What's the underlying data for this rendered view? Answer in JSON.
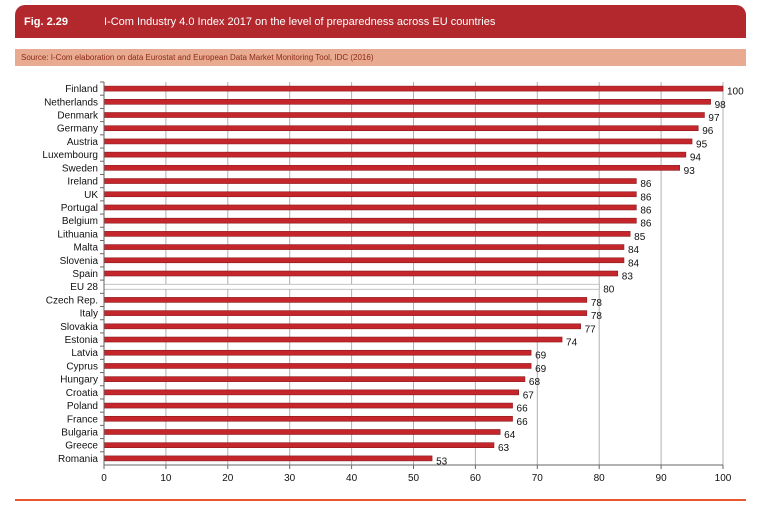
{
  "figure": {
    "number": "Fig. 2.29",
    "title": "I-Com Industry 4.0 Index 2017 on the level of preparedness across EU countries",
    "source": "Source: I-Com elaboration on data Eurostat and European Data Market Monitoring Tool, IDC (2016)"
  },
  "colors": {
    "header": "#b3282d",
    "source_bar": "#e8ab91",
    "bar": "#c4262b",
    "highlight_bar": "#ffffff",
    "grid": "#b0b0b0",
    "rule": "#e9572f"
  },
  "chart_data": {
    "type": "bar",
    "orientation": "horizontal",
    "categories": [
      "Finland",
      "Netherlands",
      "Denmark",
      "Germany",
      "Austria",
      "Luxembourg",
      "Sweden",
      "Ireland",
      "UK",
      "Portugal",
      "Belgium",
      "Lithuania",
      "Malta",
      "Slovenia",
      "Spain",
      "EU 28",
      "Czech Rep.",
      "Italy",
      "Slovakia",
      "Estonia",
      "Latvia",
      "Cyprus",
      "Hungary",
      "Croatia",
      "Poland",
      "France",
      "Bulgaria",
      "Greece",
      "Romania"
    ],
    "values": [
      100,
      98,
      97,
      96,
      95,
      94,
      93,
      86,
      86,
      86,
      86,
      85,
      84,
      84,
      83,
      80,
      78,
      78,
      77,
      74,
      69,
      69,
      68,
      67,
      66,
      66,
      64,
      63,
      53
    ],
    "highlight": "EU 28",
    "xlim": [
      0,
      100
    ],
    "xticks": [
      0,
      10,
      20,
      30,
      40,
      50,
      60,
      70,
      80,
      90,
      100
    ],
    "grid": "vertical",
    "legend": "none"
  }
}
